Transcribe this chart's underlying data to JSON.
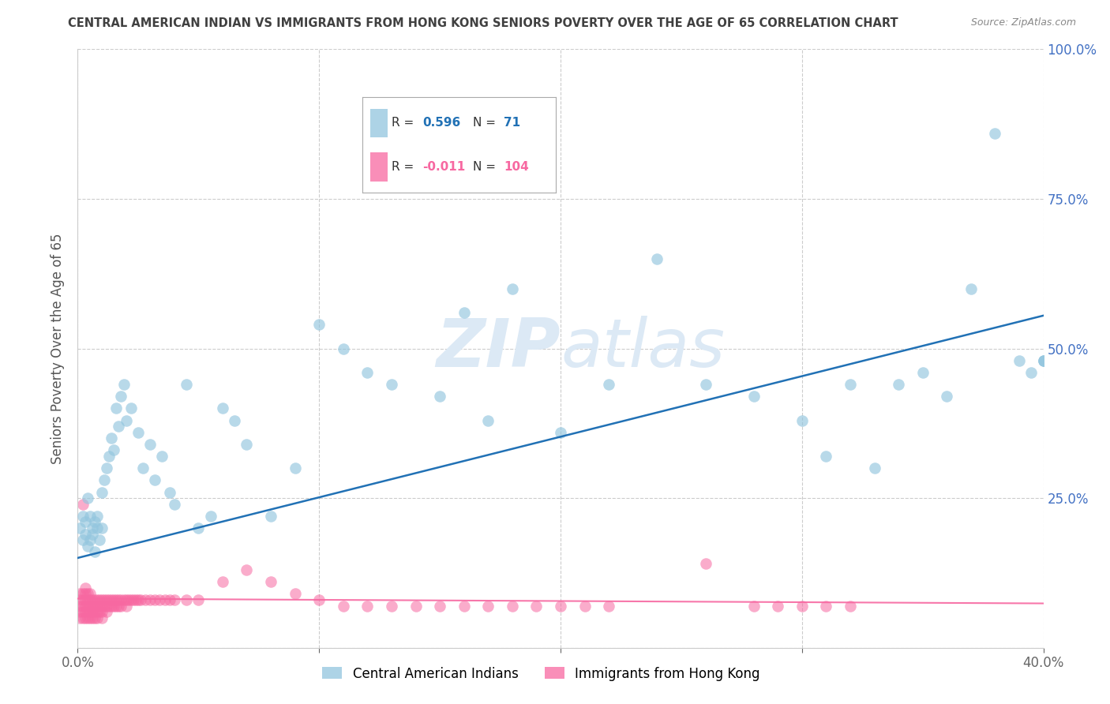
{
  "title": "CENTRAL AMERICAN INDIAN VS IMMIGRANTS FROM HONG KONG SENIORS POVERTY OVER THE AGE OF 65 CORRELATION CHART",
  "source": "Source: ZipAtlas.com",
  "ylabel": "Seniors Poverty Over the Age of 65",
  "xlim": [
    0.0,
    0.4
  ],
  "ylim": [
    0.0,
    1.0
  ],
  "blue_R": 0.596,
  "blue_N": 71,
  "pink_R": -0.011,
  "pink_N": 104,
  "blue_color": "#92c5de",
  "pink_color": "#f768a1",
  "blue_line_color": "#2171b5",
  "pink_line_color": "#f768a1",
  "title_color": "#404040",
  "axis_color": "#4472c4",
  "watermark_color": "#dce9f5",
  "background_color": "#ffffff",
  "grid_color": "#cccccc",
  "blue_line_x0": 0.0,
  "blue_line_y0": 0.15,
  "blue_line_x1": 0.4,
  "blue_line_y1": 0.555,
  "pink_line_x0": 0.0,
  "pink_line_y0": 0.082,
  "pink_line_x1": 0.4,
  "pink_line_y1": 0.074,
  "blue_scatter_x": [
    0.001,
    0.002,
    0.002,
    0.003,
    0.003,
    0.004,
    0.004,
    0.005,
    0.005,
    0.006,
    0.006,
    0.007,
    0.007,
    0.008,
    0.008,
    0.009,
    0.01,
    0.01,
    0.011,
    0.012,
    0.013,
    0.014,
    0.015,
    0.016,
    0.017,
    0.018,
    0.019,
    0.02,
    0.022,
    0.025,
    0.027,
    0.03,
    0.032,
    0.035,
    0.038,
    0.04,
    0.045,
    0.05,
    0.055,
    0.06,
    0.065,
    0.07,
    0.08,
    0.09,
    0.1,
    0.11,
    0.12,
    0.13,
    0.15,
    0.16,
    0.17,
    0.18,
    0.2,
    0.22,
    0.24,
    0.26,
    0.28,
    0.3,
    0.31,
    0.32,
    0.33,
    0.34,
    0.35,
    0.36,
    0.37,
    0.38,
    0.39,
    0.395,
    0.4,
    0.4,
    0.4
  ],
  "blue_scatter_y": [
    0.2,
    0.18,
    0.22,
    0.19,
    0.21,
    0.25,
    0.17,
    0.22,
    0.18,
    0.2,
    0.19,
    0.21,
    0.16,
    0.2,
    0.22,
    0.18,
    0.2,
    0.26,
    0.28,
    0.3,
    0.32,
    0.35,
    0.33,
    0.4,
    0.37,
    0.42,
    0.44,
    0.38,
    0.4,
    0.36,
    0.3,
    0.34,
    0.28,
    0.32,
    0.26,
    0.24,
    0.44,
    0.2,
    0.22,
    0.4,
    0.38,
    0.34,
    0.22,
    0.3,
    0.54,
    0.5,
    0.46,
    0.44,
    0.42,
    0.56,
    0.38,
    0.6,
    0.36,
    0.44,
    0.65,
    0.44,
    0.42,
    0.38,
    0.32,
    0.44,
    0.3,
    0.44,
    0.46,
    0.42,
    0.6,
    0.86,
    0.48,
    0.46,
    0.48,
    0.48,
    0.48
  ],
  "pink_scatter_x": [
    0.001,
    0.001,
    0.001,
    0.001,
    0.001,
    0.002,
    0.002,
    0.002,
    0.002,
    0.002,
    0.002,
    0.003,
    0.003,
    0.003,
    0.003,
    0.003,
    0.003,
    0.004,
    0.004,
    0.004,
    0.004,
    0.004,
    0.005,
    0.005,
    0.005,
    0.005,
    0.005,
    0.006,
    0.006,
    0.006,
    0.006,
    0.007,
    0.007,
    0.007,
    0.007,
    0.008,
    0.008,
    0.008,
    0.008,
    0.009,
    0.009,
    0.009,
    0.01,
    0.01,
    0.01,
    0.01,
    0.011,
    0.011,
    0.012,
    0.012,
    0.012,
    0.013,
    0.013,
    0.014,
    0.014,
    0.015,
    0.015,
    0.016,
    0.016,
    0.017,
    0.017,
    0.018,
    0.018,
    0.019,
    0.02,
    0.02,
    0.021,
    0.022,
    0.023,
    0.024,
    0.025,
    0.026,
    0.028,
    0.03,
    0.032,
    0.034,
    0.036,
    0.038,
    0.04,
    0.045,
    0.05,
    0.06,
    0.07,
    0.08,
    0.09,
    0.1,
    0.11,
    0.12,
    0.13,
    0.14,
    0.15,
    0.16,
    0.17,
    0.18,
    0.19,
    0.2,
    0.21,
    0.22,
    0.26,
    0.28,
    0.29,
    0.3,
    0.31,
    0.32
  ],
  "pink_scatter_y": [
    0.08,
    0.07,
    0.06,
    0.05,
    0.09,
    0.08,
    0.07,
    0.06,
    0.05,
    0.09,
    0.24,
    0.08,
    0.07,
    0.06,
    0.05,
    0.09,
    0.1,
    0.08,
    0.07,
    0.06,
    0.05,
    0.09,
    0.08,
    0.07,
    0.06,
    0.05,
    0.09,
    0.08,
    0.07,
    0.06,
    0.05,
    0.08,
    0.07,
    0.06,
    0.05,
    0.08,
    0.07,
    0.06,
    0.05,
    0.08,
    0.07,
    0.06,
    0.08,
    0.07,
    0.06,
    0.05,
    0.08,
    0.07,
    0.08,
    0.07,
    0.06,
    0.08,
    0.07,
    0.08,
    0.07,
    0.08,
    0.07,
    0.08,
    0.07,
    0.08,
    0.07,
    0.08,
    0.07,
    0.08,
    0.08,
    0.07,
    0.08,
    0.08,
    0.08,
    0.08,
    0.08,
    0.08,
    0.08,
    0.08,
    0.08,
    0.08,
    0.08,
    0.08,
    0.08,
    0.08,
    0.08,
    0.11,
    0.13,
    0.11,
    0.09,
    0.08,
    0.07,
    0.07,
    0.07,
    0.07,
    0.07,
    0.07,
    0.07,
    0.07,
    0.07,
    0.07,
    0.07,
    0.07,
    0.14,
    0.07,
    0.07,
    0.07,
    0.07,
    0.07
  ]
}
